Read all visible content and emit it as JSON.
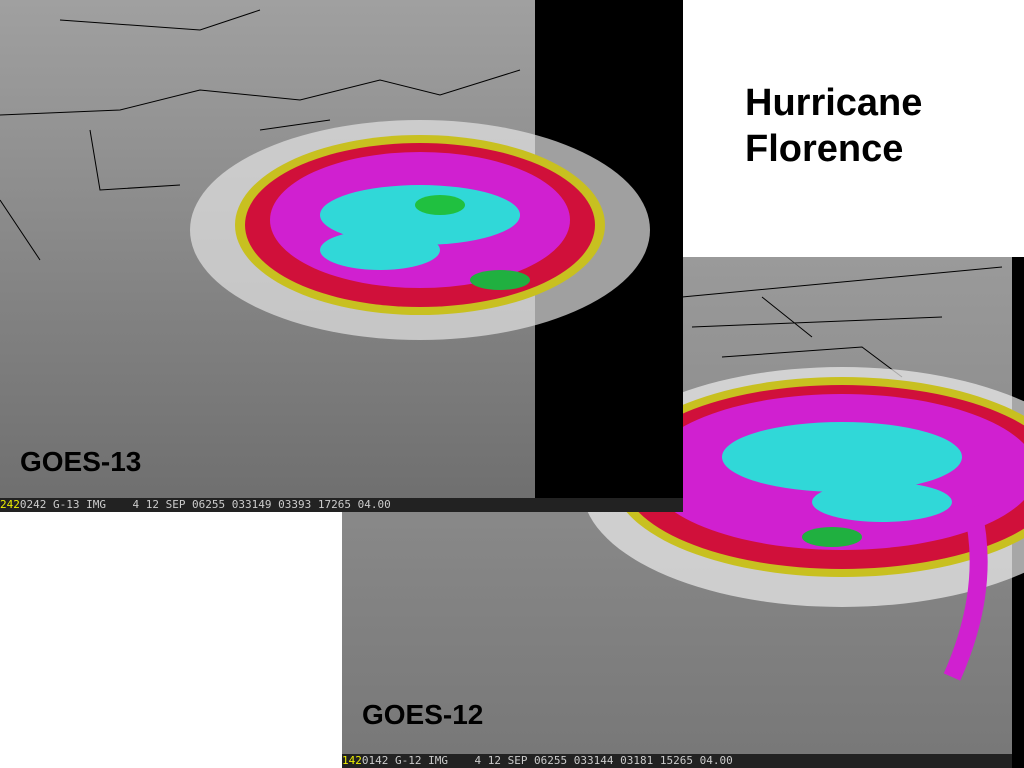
{
  "title_lines": [
    "Hurricane",
    "Florence"
  ],
  "images": [
    {
      "label": "GOES-13",
      "status_prefix": "242",
      "status": "0242 G-13 IMG    4 12 SEP 06255 033149 03393 17265 04.00"
    },
    {
      "label": "GOES-12",
      "status_prefix": "142",
      "status": "0142 G-12 IMG    4 12 SEP 06255 033144 03181 15265 04.00"
    }
  ]
}
